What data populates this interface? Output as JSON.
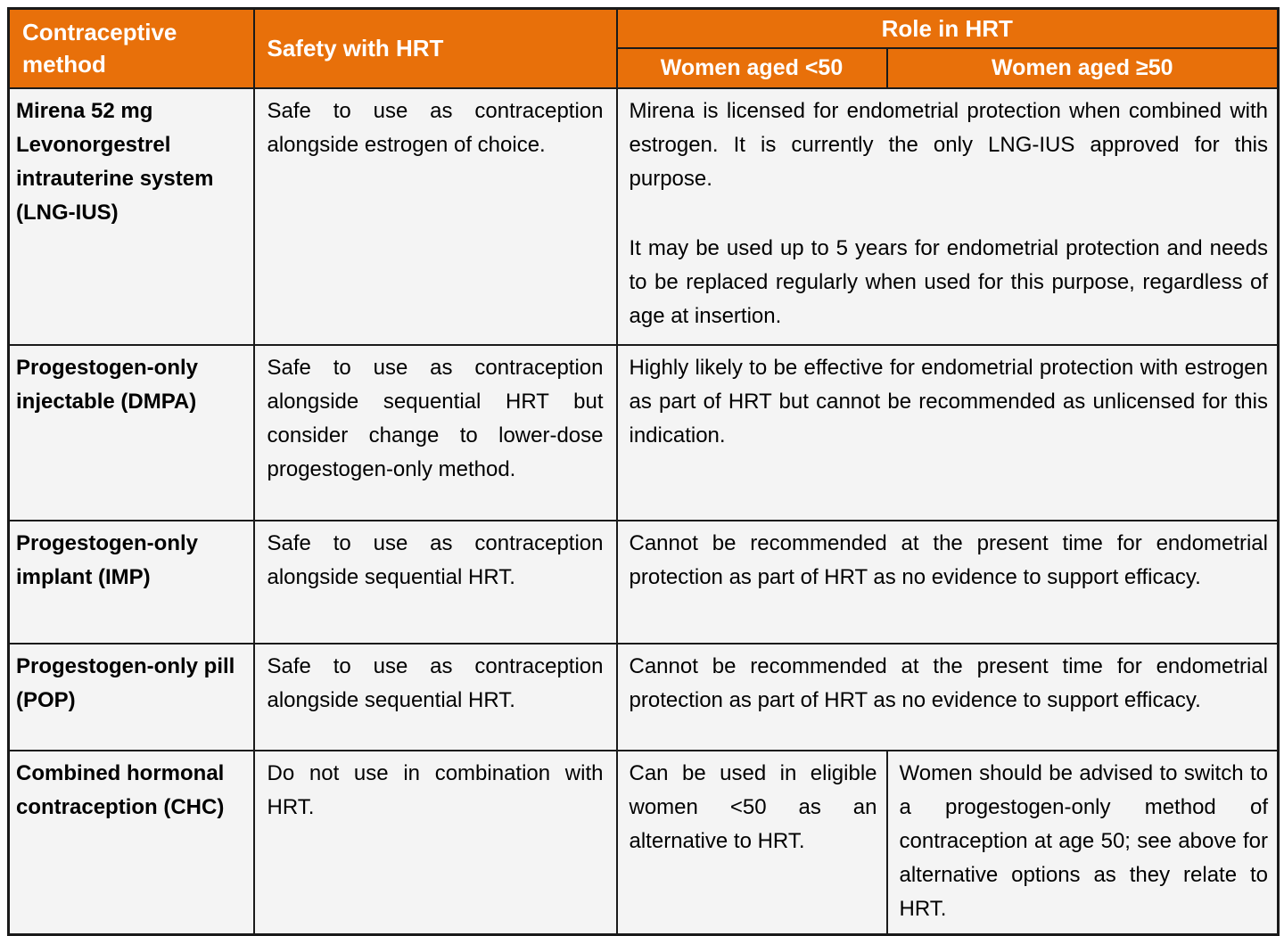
{
  "colors": {
    "header_bg": "#E8700A",
    "header_text": "#FFFFFF",
    "cell_bg": "#F4F4F4",
    "border": "#1A1A1A",
    "body_text": "#000000"
  },
  "table": {
    "header": {
      "contraceptive_method": "Contraceptive method",
      "safety_with_hrt": "Safety with HRT",
      "role_in_hrt": "Role in HRT",
      "women_under_50": "Women aged <50",
      "women_50_plus": "Women aged ≥50"
    },
    "rows": [
      {
        "method": "Mirena 52 mg Levonorgestrel intrauterine system (LNG-IUS)",
        "safety": "Safe to use as contraception alongside estrogen of choice.",
        "role_p1": "Mirena is licensed for endometrial protection when combined with estrogen. It is currently the only LNG-IUS approved for this purpose.",
        "role_p2": "It may be used up to 5 years for endometrial protection and needs to be replaced regularly when used for this purpose, regardless of age at insertion."
      },
      {
        "method": "Progestogen-only injectable (DMPA)",
        "safety": "Safe to use as contraception alongside sequential HRT but consider change to lower-dose progestogen-only method.",
        "role": "Highly likely to be effective for endometrial protection with estrogen as part of HRT but cannot be recommended as unlicensed for this indication."
      },
      {
        "method": "Progestogen-only implant (IMP)",
        "safety": "Safe to use as contraception alongside sequential HRT.",
        "role": "Cannot be recommended at the present time for endometrial protection as part of HRT as no evidence to support efficacy."
      },
      {
        "method": "Progestogen-only pill (POP)",
        "safety": "Safe to use as contraception alongside sequential HRT.",
        "role": "Cannot be recommended at the present time for endometrial protection as part of HRT as no evidence to support efficacy."
      },
      {
        "method": "Combined hormonal contraception (CHC)",
        "safety": "Do not use in combination with HRT.",
        "role_under50": "Can be used in eligible women <50 as an alternative to HRT.",
        "role_50plus": "Women should be advised to switch to a progestogen-only method of contraception at age 50; see above for alternative options as they relate to HRT."
      }
    ]
  }
}
